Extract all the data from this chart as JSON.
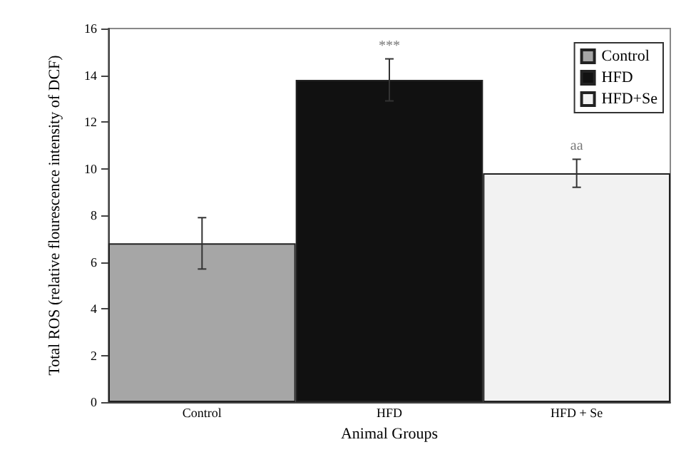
{
  "chart_data": {
    "type": "bar",
    "xlabel": "Animal Groups",
    "ylabel": "Total ROS (relative flourescence intensity of DCF)",
    "categories": [
      "Control",
      "HFD",
      "HFD + Se"
    ],
    "series": [
      {
        "name": "Control",
        "color": "#a6a6a6",
        "values": [
          6.8,
          null,
          null
        ],
        "errors": [
          [
            5.7,
            7.9
          ],
          null,
          null
        ]
      },
      {
        "name": "HFD",
        "color": "#111111",
        "values": [
          null,
          13.8,
          null
        ],
        "errors": [
          null,
          [
            12.9,
            14.7
          ],
          null
        ]
      },
      {
        "name": "HFD+Se",
        "color": "#f2f2f2",
        "values": [
          null,
          null,
          9.8
        ],
        "errors": [
          null,
          null,
          [
            9.2,
            10.4
          ]
        ]
      }
    ],
    "annotations": [
      {
        "text": "***",
        "x": "HFD",
        "y": 14.7
      },
      {
        "text": "aa",
        "x": "HFD + Se",
        "y": 10.4
      }
    ],
    "ylim": [
      0,
      16
    ],
    "yticks": [
      0,
      2,
      4,
      6,
      8,
      10,
      12,
      14,
      16
    ],
    "grid": false,
    "legend": "top right"
  }
}
